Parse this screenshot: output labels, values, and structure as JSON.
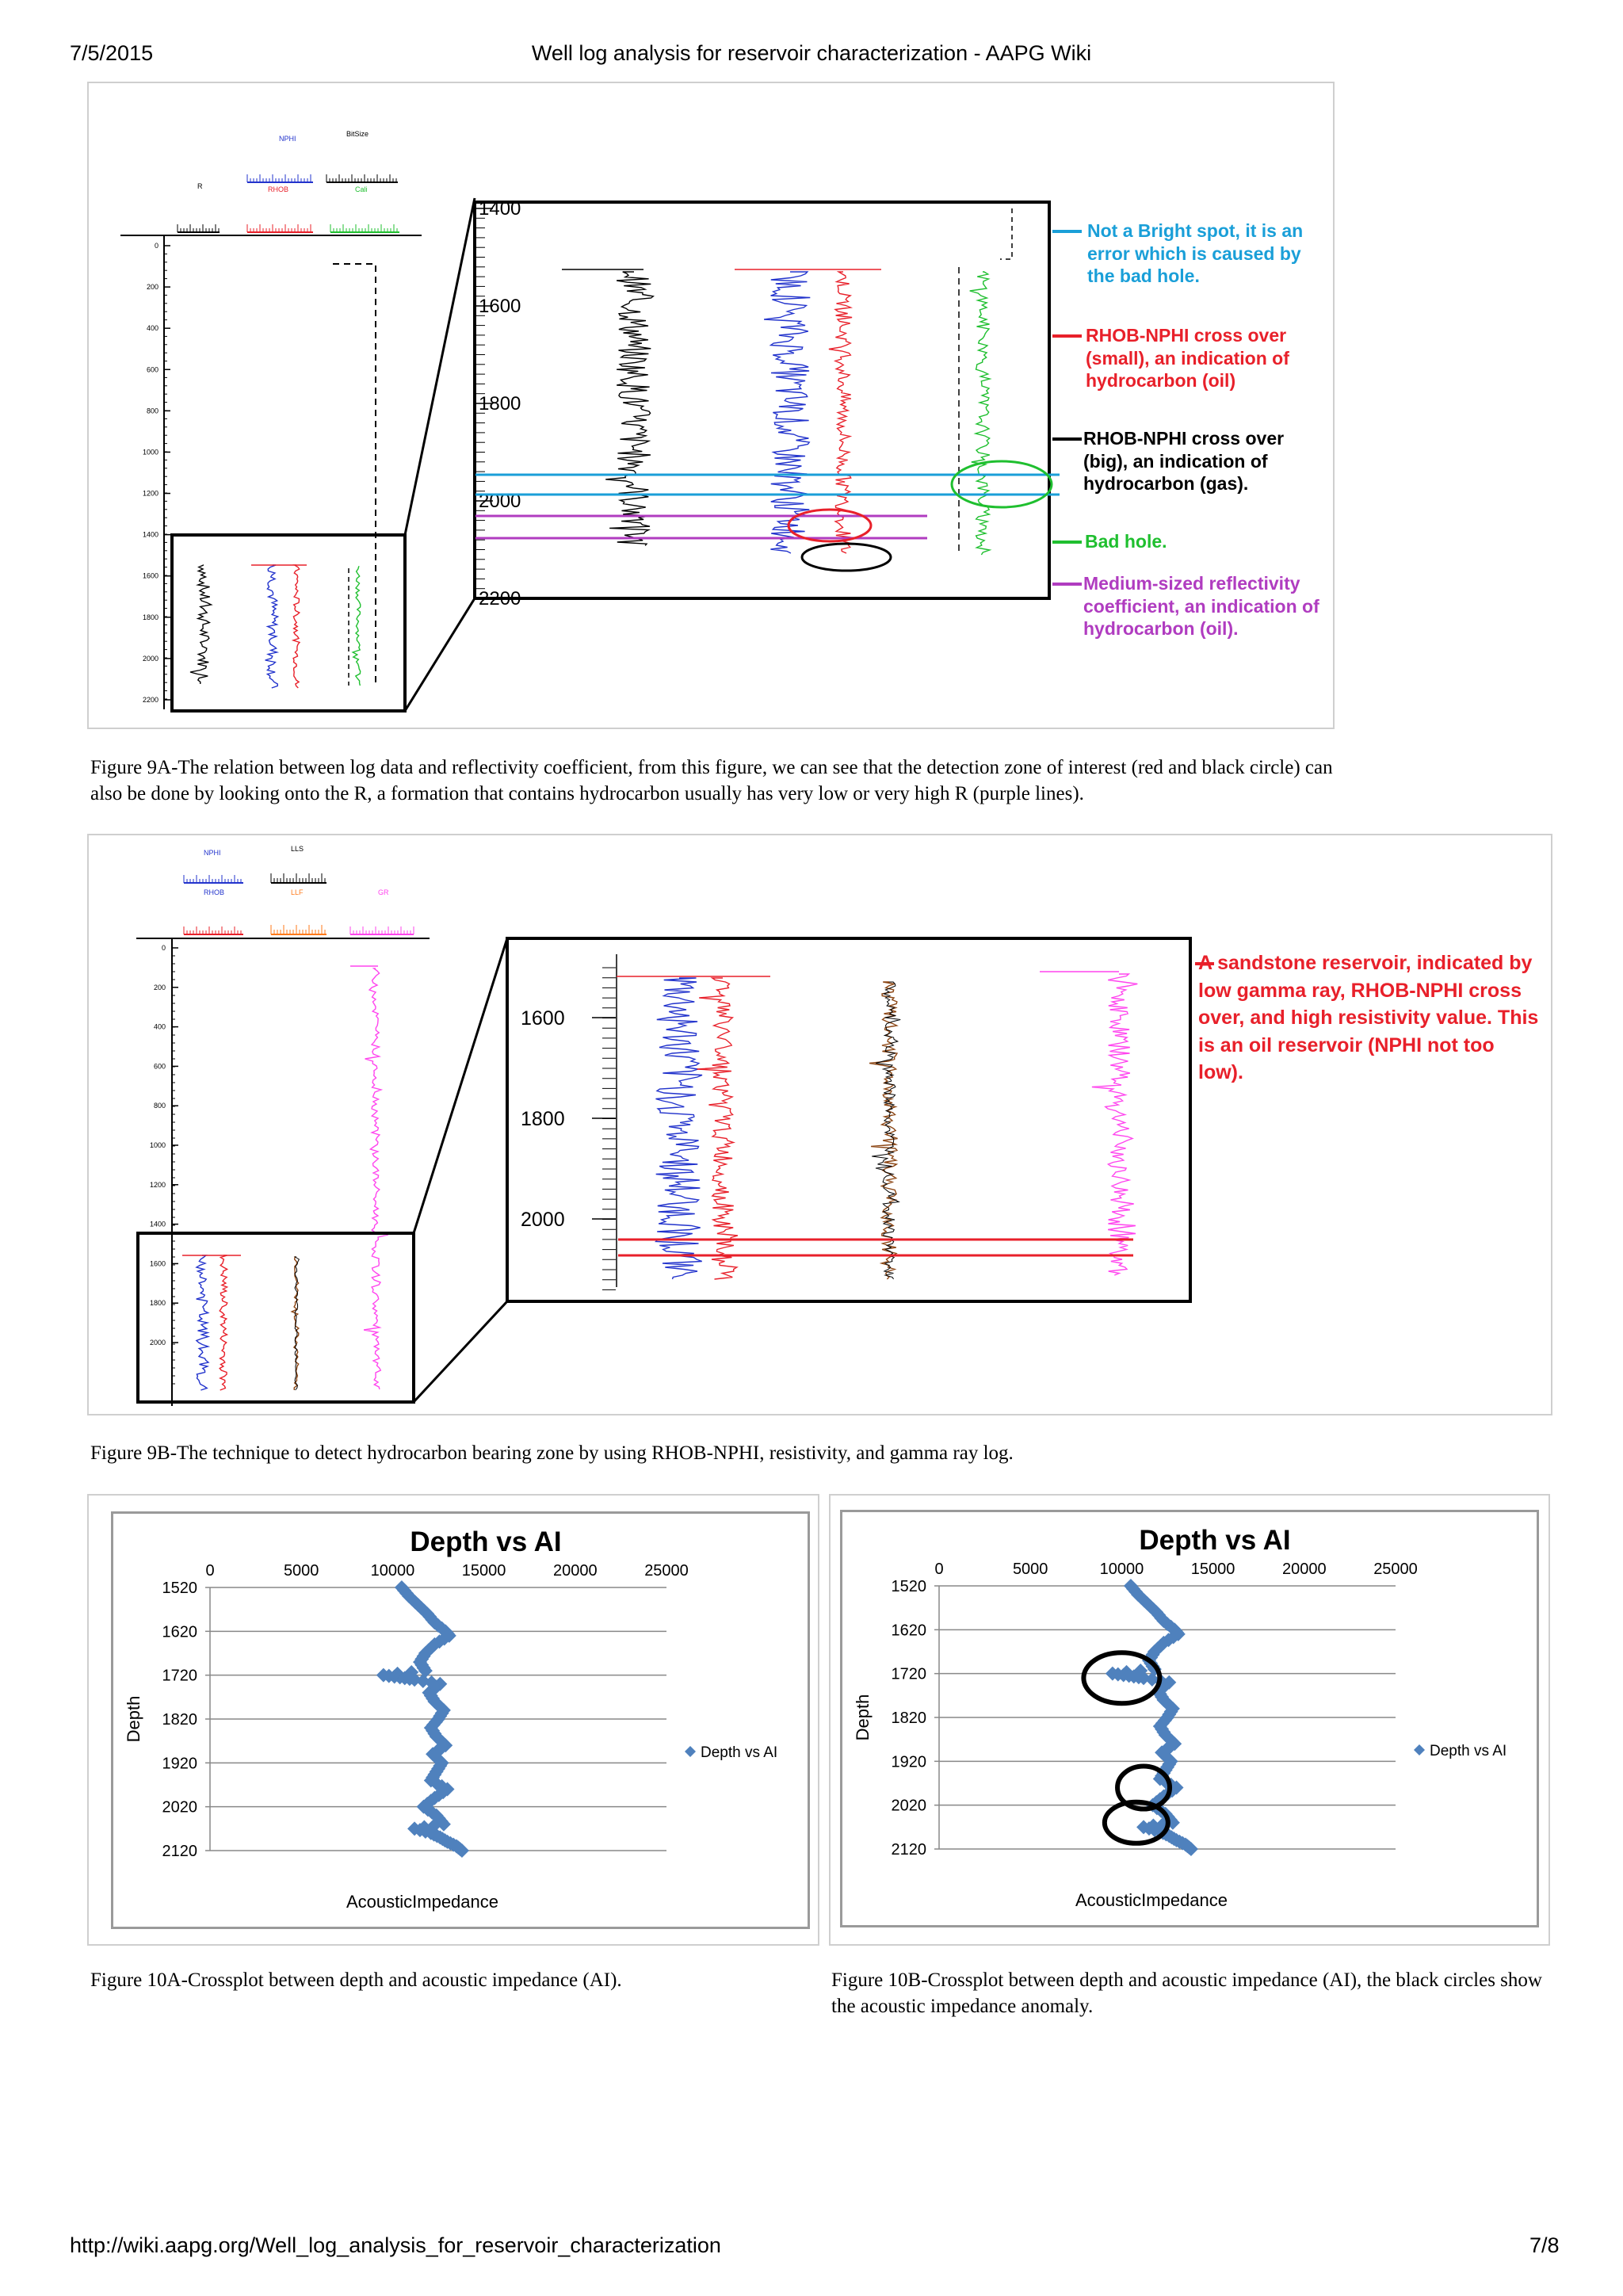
{
  "header": {
    "date": "7/5/2015",
    "title": "Well log analysis for reservoir characterization - AAPG Wiki"
  },
  "footer": {
    "url": "http://wiki.aapg.org/Well_log_analysis_for_reservoir_characterization",
    "page": "7/8"
  },
  "fig9a": {
    "track_labels": {
      "nphi": "NPHI",
      "bitsize": "BitSize",
      "r": "R",
      "rhob": "RHOB",
      "cali": "Cali"
    },
    "depth_ticks": [
      "0",
      "200",
      "400",
      "600",
      "800",
      "1000",
      "1200",
      "1400",
      "1600",
      "1800",
      "2000",
      "2200"
    ],
    "zoom_depth_ticks": [
      "1400",
      "1600",
      "1800",
      "2000",
      "2200"
    ],
    "annotations": [
      {
        "text": "Not a Bright spot, it is an error which is caused by the bad hole.",
        "color": "#1a9fd8"
      },
      {
        "text": "RHOB-NPHI cross over (small), an indication of hydrocarbon (oil)",
        "color": "#e8202a"
      },
      {
        "text": "RHOB-NPHI cross over (big), an indication of hydrocarbon (gas).",
        "color": "#000000"
      },
      {
        "text": "Bad hole.",
        "color": "#1fbf2f"
      },
      {
        "text": "Medium-sized reflectivity coefficient, an indication of hydrocarbon (oil).",
        "color": "#b03cc0"
      }
    ],
    "caption": "Figure 9A-The relation between log data and reflectivity coefficient, from this figure, we can see that the detection zone of interest (red and black circle) can also be done by looking onto the R, a formation that contains hydrocarbon usually has very low or very high R (purple lines)."
  },
  "fig9b": {
    "track_labels": {
      "nphi": "NPHI",
      "lls": "LLS",
      "rhob": "RHOB",
      "llf": "LLF",
      "gr": "GR"
    },
    "depth_ticks": [
      "0",
      "200",
      "400",
      "600",
      "800",
      "1000",
      "1200",
      "1400",
      "1600",
      "1800",
      "2000"
    ],
    "zoom_depth_ticks": [
      "1600",
      "1800",
      "2000"
    ],
    "annotation": {
      "text": "A sandstone reservoir, indicated by low gamma ray, RHOB-NPHI cross over, and high resistivity value. This is an oil reservoir (NPHI not too low).",
      "color": "#e8202a"
    },
    "caption": "Figure 9B-The technique to detect hydrocarbon bearing zone by using RHOB-NPHI, resistivity, and gamma ray log."
  },
  "chart_data": [
    {
      "type": "scatter",
      "title": "Depth vs AI",
      "xlabel": "AcousticImpedance",
      "ylabel": "Depth",
      "xlim": [
        0,
        25000
      ],
      "ylim": [
        2120,
        1520
      ],
      "x_ticks": [
        "0",
        "5000",
        "10000",
        "15000",
        "20000",
        "25000"
      ],
      "y_ticks": [
        "1520",
        "1620",
        "1720",
        "1820",
        "1920",
        "2020",
        "2120"
      ],
      "legend": "right",
      "series": [
        {
          "name": "Depth vs AI",
          "color": "#4f81bd",
          "points": [
            [
              10500,
              1520
            ],
            [
              10900,
              1540
            ],
            [
              11400,
              1560
            ],
            [
              11900,
              1580
            ],
            [
              12300,
              1600
            ],
            [
              12900,
              1620
            ],
            [
              13100,
              1630
            ],
            [
              12300,
              1650
            ],
            [
              11800,
              1670
            ],
            [
              11500,
              1690
            ],
            [
              11800,
              1710
            ],
            [
              9500,
              1720
            ],
            [
              10400,
              1725
            ],
            [
              11200,
              1730
            ],
            [
              12600,
              1740
            ],
            [
              12000,
              1760
            ],
            [
              12300,
              1780
            ],
            [
              12800,
              1800
            ],
            [
              12500,
              1820
            ],
            [
              12100,
              1840
            ],
            [
              12400,
              1860
            ],
            [
              12900,
              1880
            ],
            [
              12200,
              1900
            ],
            [
              12700,
              1920
            ],
            [
              12400,
              1940
            ],
            [
              12100,
              1960
            ],
            [
              13000,
              1980
            ],
            [
              12300,
              2000
            ],
            [
              11700,
              2020
            ],
            [
              12400,
              2040
            ],
            [
              12800,
              2060
            ],
            [
              11200,
              2070
            ],
            [
              12100,
              2080
            ],
            [
              12600,
              2090
            ],
            [
              13000,
              2100
            ],
            [
              13500,
              2110
            ],
            [
              13800,
              2120
            ]
          ]
        }
      ],
      "caption": "Figure 10A-Crossplot between depth and acoustic impedance (AI)."
    },
    {
      "type": "scatter",
      "title": "Depth vs AI",
      "xlabel": "AcousticImpedance",
      "ylabel": "Depth",
      "xlim": [
        0,
        25000
      ],
      "ylim": [
        2120,
        1520
      ],
      "x_ticks": [
        "0",
        "5000",
        "10000",
        "15000",
        "20000",
        "25000"
      ],
      "y_ticks": [
        "1520",
        "1620",
        "1720",
        "1820",
        "1920",
        "2020",
        "2120"
      ],
      "legend": "right",
      "series": [
        {
          "name": "Depth vs AI",
          "color": "#4f81bd",
          "points": [
            [
              10500,
              1520
            ],
            [
              10900,
              1540
            ],
            [
              11400,
              1560
            ],
            [
              11900,
              1580
            ],
            [
              12300,
              1600
            ],
            [
              12900,
              1620
            ],
            [
              13100,
              1630
            ],
            [
              12300,
              1650
            ],
            [
              11800,
              1670
            ],
            [
              11500,
              1690
            ],
            [
              11800,
              1710
            ],
            [
              9500,
              1720
            ],
            [
              10400,
              1725
            ],
            [
              11200,
              1730
            ],
            [
              12600,
              1740
            ],
            [
              12000,
              1760
            ],
            [
              12300,
              1780
            ],
            [
              12800,
              1800
            ],
            [
              12500,
              1820
            ],
            [
              12100,
              1840
            ],
            [
              12400,
              1860
            ],
            [
              12900,
              1880
            ],
            [
              12200,
              1900
            ],
            [
              12700,
              1920
            ],
            [
              12400,
              1940
            ],
            [
              12100,
              1960
            ],
            [
              13000,
              1980
            ],
            [
              12300,
              2000
            ],
            [
              11700,
              2020
            ],
            [
              12400,
              2040
            ],
            [
              12800,
              2060
            ],
            [
              11200,
              2070
            ],
            [
              12100,
              2080
            ],
            [
              12600,
              2090
            ],
            [
              13000,
              2100
            ],
            [
              13500,
              2110
            ],
            [
              13800,
              2120
            ]
          ]
        }
      ],
      "circles": [
        [
          10000,
          1730
        ],
        [
          11200,
          1980
        ],
        [
          10800,
          2060
        ]
      ],
      "caption": "Figure 10B-Crossplot between depth and acoustic impedance (AI), the black circles show the acoustic impedance anomaly."
    }
  ]
}
